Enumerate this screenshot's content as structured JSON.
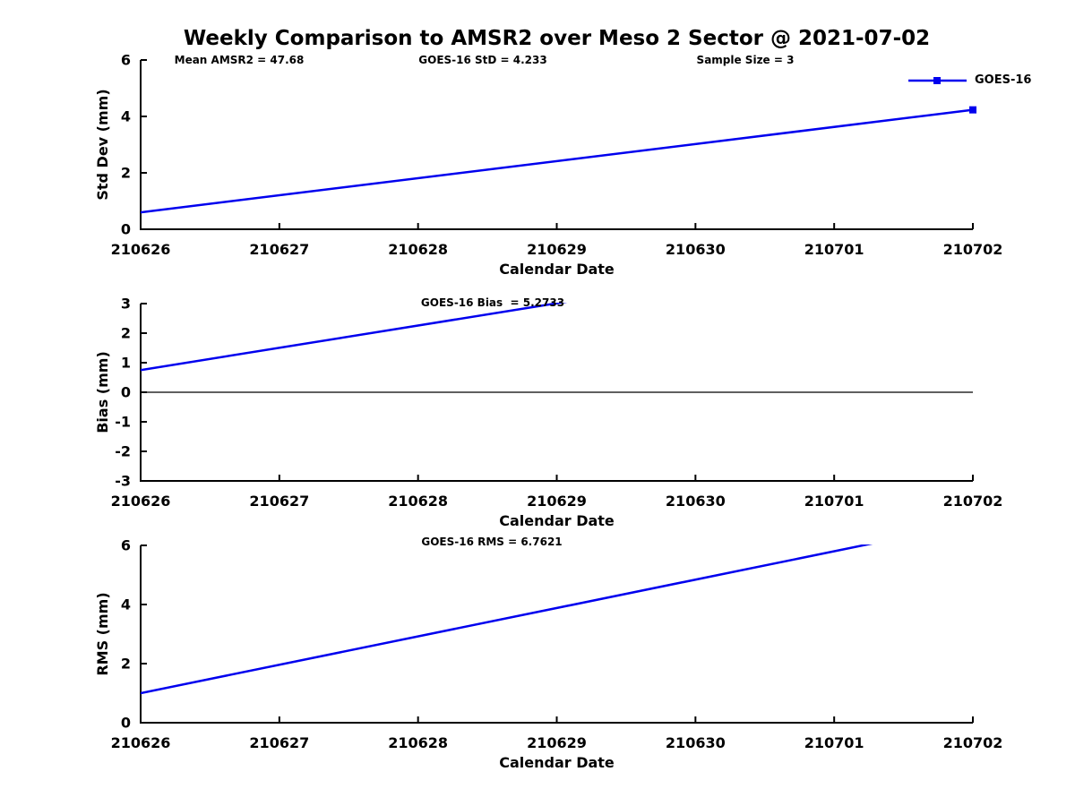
{
  "chart_data": {
    "type": "line",
    "title": "Weekly Comparison to AMSR2 over Meso 2 Sector @ 2021-07-02",
    "xlabel": "Calendar Date",
    "x_categories": [
      "210626",
      "210627",
      "210628",
      "210629",
      "210630",
      "210701",
      "210702"
    ],
    "legend": {
      "label": "GOES-16",
      "color": "#0000EE",
      "position": "top-right",
      "marker": "square"
    },
    "header_annotations": [
      {
        "text": "Mean AMSR2 = 47.68"
      },
      {
        "text": "GOES-16 StD = 4.233"
      },
      {
        "text": "Sample Size = 3"
      }
    ],
    "panels": [
      {
        "name": "std-dev",
        "ylabel": "Std Dev (mm)",
        "ylim": [
          0,
          6
        ],
        "yticks": [
          0,
          2,
          4,
          6
        ],
        "zero_line": false,
        "annotation": "",
        "series": [
          {
            "name": "GOES-16",
            "color": "#0000EE",
            "x_days": [
              0,
              6
            ],
            "values": [
              0.6,
              4.233
            ],
            "end_marker": true
          }
        ]
      },
      {
        "name": "bias",
        "ylabel": "Bias (mm)",
        "ylim": [
          -3,
          3
        ],
        "yticks": [
          3,
          2,
          1,
          0,
          -1,
          -2,
          -3
        ],
        "zero_line": true,
        "annotation": "GOES-16 Bias  = 5.2733",
        "series": [
          {
            "name": "GOES-16",
            "color": "#0000EE",
            "x_days": [
              0,
              6
            ],
            "values": [
              0.75,
              5.2733
            ],
            "end_marker": false
          }
        ]
      },
      {
        "name": "rms",
        "ylabel": "RMS (mm)",
        "ylim": [
          0,
          6
        ],
        "yticks": [
          0,
          2,
          4,
          6
        ],
        "zero_line": false,
        "annotation": "GOES-16 RMS = 6.7621",
        "series": [
          {
            "name": "GOES-16",
            "color": "#0000EE",
            "x_days": [
              0,
              6
            ],
            "values": [
              1.0,
              6.7621
            ],
            "end_marker": false
          }
        ]
      }
    ]
  }
}
